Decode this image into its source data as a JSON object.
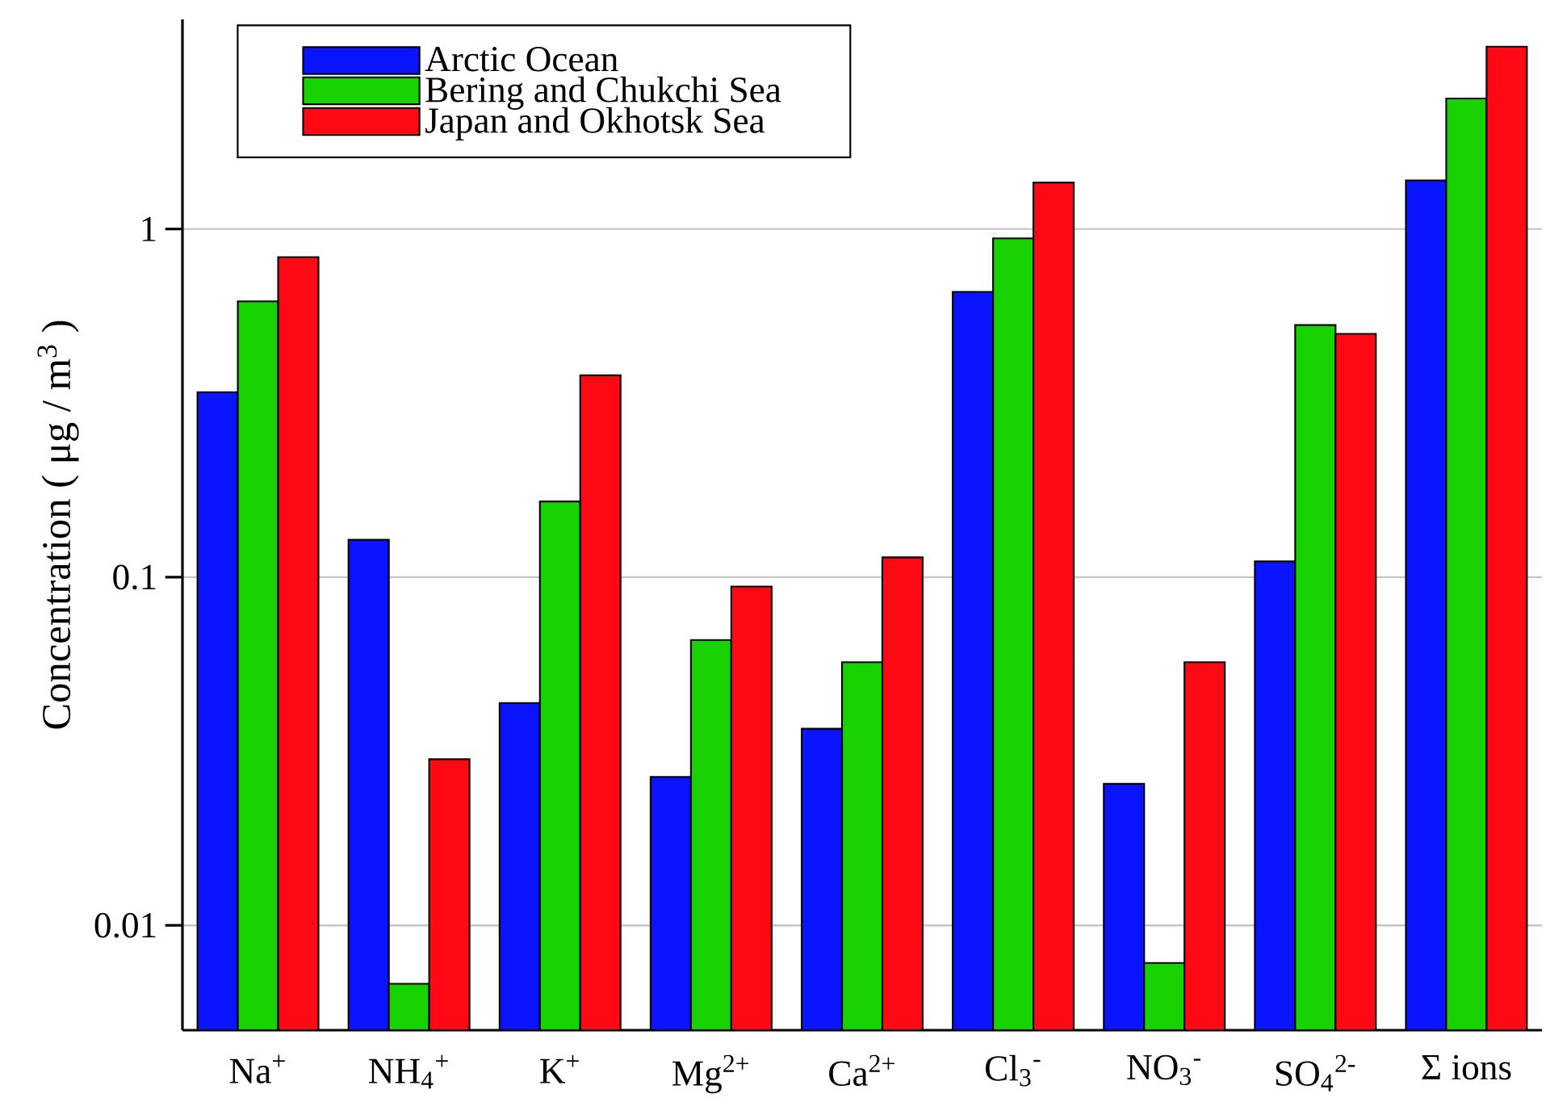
{
  "chart_data": {
    "type": "bar",
    "categories": [
      "Na$^{+}$",
      "NH$_{4}$$^{+}$",
      "K$^{+}$",
      "Mg$^{2+}$",
      "Ca$^{2+}$",
      "Cl$_{3}$$^{-}$",
      "NO$_{3}$$^{-}$",
      "SO$_{4}$$^{2-}$",
      "Σ ions"
    ],
    "series": [
      {
        "name": "Arctic Ocean",
        "color": "#0a14ff",
        "values": [
          0.34,
          0.128,
          0.0435,
          0.0267,
          0.0367,
          0.66,
          0.0255,
          0.111,
          1.38
        ]
      },
      {
        "name": "Bering and Chukchi Sea",
        "color": "#18d200",
        "values": [
          0.62,
          0.0068,
          0.165,
          0.066,
          0.057,
          0.94,
          0.0078,
          0.53,
          2.37
        ]
      },
      {
        "name": "Japan and Okhotsk Sea",
        "color": "#ff0a14",
        "values": [
          0.83,
          0.03,
          0.38,
          0.094,
          0.114,
          1.36,
          0.057,
          0.5,
          3.34
        ]
      }
    ],
    "ylabel": "Concentration ( μg / m$^{3}$ )",
    "log": "y",
    "ylim": [
      0.005,
      4
    ],
    "yticks": [
      0.01,
      0.1,
      1
    ],
    "grid": "y",
    "legend": "top left"
  }
}
